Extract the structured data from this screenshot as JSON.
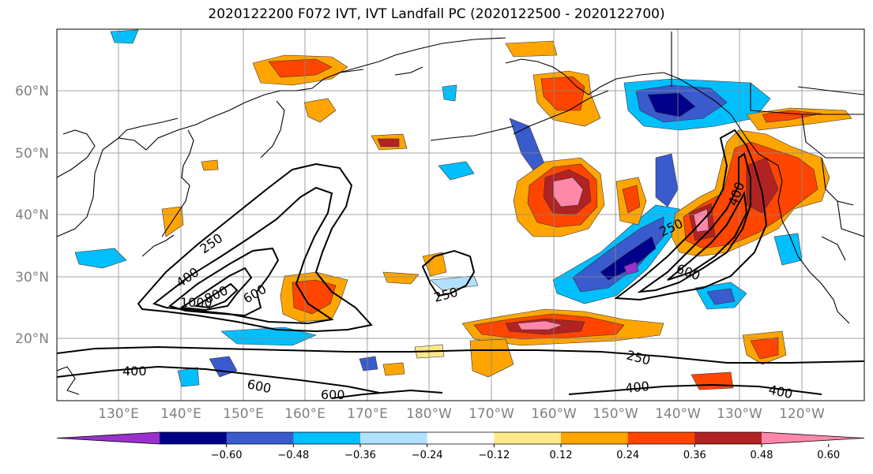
{
  "title": "2020122200 F072 IVT, IVT Landfall PC (2020122500 - 2020122700)",
  "map": {
    "lat_labels": [
      "60°N",
      "50°N",
      "40°N",
      "30°N",
      "20°N"
    ],
    "lon_labels": [
      "130°E",
      "140°E",
      "150°E",
      "160°E",
      "170°E",
      "180°W",
      "170°W",
      "160°W",
      "150°W",
      "140°W",
      "130°W",
      "120°W"
    ]
  },
  "contours": {
    "line_color": "#000000",
    "labels": [
      "250",
      "400",
      "1000",
      "800",
      "600",
      "250",
      "250",
      "400",
      "600",
      "250",
      "400",
      "400",
      "600",
      "600",
      "400"
    ]
  },
  "colorbar": {
    "colors": [
      "#9932cc",
      "#00008b",
      "#3a5bcd",
      "#00bfff",
      "#b0e2ff",
      "#ffffff",
      "#ffe88a",
      "#ffa500",
      "#ff4500",
      "#b22222",
      "#ff88aa"
    ],
    "tick_labels": [
      "−0.60",
      "−0.48",
      "−0.36",
      "−0.24",
      "−0.12",
      "0.12",
      "0.24",
      "0.36",
      "0.48",
      "0.60"
    ]
  }
}
